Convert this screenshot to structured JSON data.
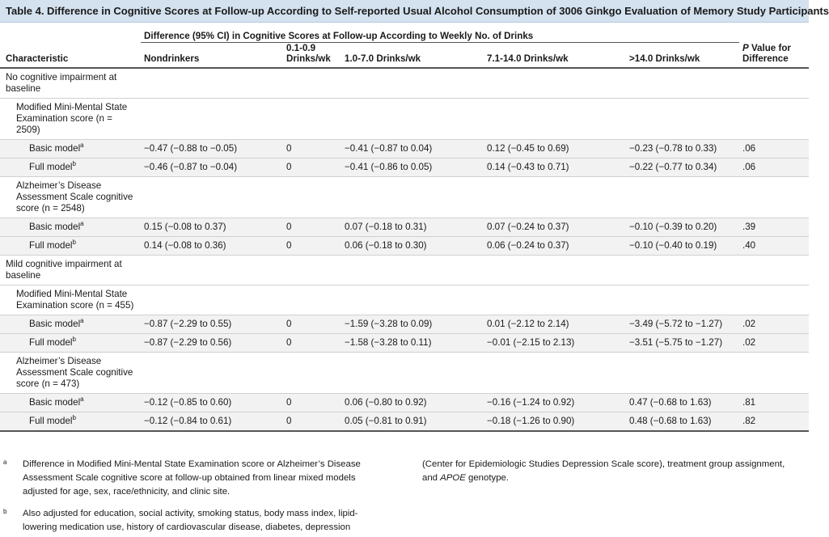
{
  "title": "Table 4. Difference in Cognitive Scores at Follow-up According to Self-reported Usual Alcohol Consumption of 3006 Ginkgo Evaluation of Memory Study Participants",
  "header": {
    "span_label": "Difference (95% CI) in Cognitive Scores at Follow-up According to Weekly No. of Drinks",
    "characteristic": "Characteristic",
    "columns": [
      "Nondrinkers",
      "0.1-0.9 Drinks/wk",
      "1.0-7.0 Drinks/wk",
      "7.1-14.0 Drinks/wk",
      ">14.0 Drinks/wk"
    ],
    "pvalue_italic": "P",
    "pvalue_rest": " Value for Difference"
  },
  "rows": [
    {
      "kind": "section",
      "level": 0,
      "label": "No cognitive impairment at baseline"
    },
    {
      "kind": "section",
      "level": 1,
      "label": "Modified Mini-Mental State Examination score (n = 2509)"
    },
    {
      "kind": "data",
      "level": 2,
      "label": "Basic model",
      "sup": "a",
      "values": [
        "−0.47 (−0.88 to −0.05)",
        "0",
        "−0.41 (−0.87 to 0.04)",
        "0.12 (−0.45 to 0.69)",
        "−0.23 (−0.78 to 0.33)",
        ".06"
      ]
    },
    {
      "kind": "data",
      "level": 2,
      "label": "Full model",
      "sup": "b",
      "values": [
        "−0.46 (−0.87 to −0.04)",
        "0",
        "−0.41 (−0.86 to 0.05)",
        "0.14 (−0.43 to 0.71)",
        "−0.22 (−0.77 to 0.34)",
        ".06"
      ]
    },
    {
      "kind": "section",
      "level": 1,
      "label": "Alzheimer’s Disease Assessment Scale cognitive score (n = 2548)"
    },
    {
      "kind": "data",
      "level": 2,
      "label": "Basic model",
      "sup": "a",
      "values": [
        "0.15 (−0.08 to 0.37)",
        "0",
        "0.07 (−0.18 to 0.31)",
        "0.07 (−0.24 to 0.37)",
        "−0.10 (−0.39 to 0.20)",
        ".39"
      ]
    },
    {
      "kind": "data",
      "level": 2,
      "label": "Full model",
      "sup": "b",
      "values": [
        "0.14 (−0.08 to 0.36)",
        "0",
        "0.06 (−0.18 to 0.30)",
        "0.06 (−0.24 to 0.37)",
        "−0.10 (−0.40 to 0.19)",
        ".40"
      ]
    },
    {
      "kind": "section",
      "level": 0,
      "label": "Mild cognitive impairment at baseline"
    },
    {
      "kind": "section",
      "level": 1,
      "label": "Modified Mini-Mental State Examination score (n = 455)"
    },
    {
      "kind": "data",
      "level": 2,
      "label": "Basic model",
      "sup": "a",
      "values": [
        "−0.87 (−2.29 to 0.55)",
        "0",
        "−1.59 (−3.28 to 0.09)",
        "0.01 (−2.12 to 2.14)",
        "−3.49 (−5.72 to −1.27)",
        ".02"
      ]
    },
    {
      "kind": "data",
      "level": 2,
      "label": "Full model",
      "sup": "b",
      "values": [
        "−0.87 (−2.29 to 0.56)",
        "0",
        "−1.58 (−3.28 to 0.11)",
        "−0.01 (−2.15 to 2.13)",
        "−3.51 (−5.75 to −1.27)",
        ".02"
      ]
    },
    {
      "kind": "section",
      "level": 1,
      "label": "Alzheimer’s Disease Assessment Scale cognitive score (n = 473)"
    },
    {
      "kind": "data",
      "level": 2,
      "label": "Basic model",
      "sup": "a",
      "values": [
        "−0.12 (−0.85 to 0.60)",
        "0",
        "0.06 (−0.80 to 0.92)",
        "−0.16 (−1.24 to 0.92)",
        "0.47 (−0.68 to 1.63)",
        ".81"
      ]
    },
    {
      "kind": "data",
      "level": 2,
      "label": "Full model",
      "sup": "b",
      "values": [
        "−0.12 (−0.84 to 0.61)",
        "0",
        "0.05 (−0.81 to 0.91)",
        "−0.18 (−1.26 to 0.90)",
        "0.48 (−0.68 to 1.63)",
        ".82"
      ]
    }
  ],
  "footnotes": {
    "a_mark": "a",
    "a_text": "Difference in Modified Mini-Mental State Examination score or Alzheimer’s Disease Assessment Scale cognitive score at follow-up obtained from linear mixed models adjusted for age, sex, race/ethnicity, and clinic site.",
    "b_mark": "b",
    "b_text": "Also adjusted for education, social activity, smoking status, body mass index, lipid-lowering medication use, history of cardiovascular disease, diabetes, depression",
    "b_cont_before": "(Center for Epidemiologic Studies Depression Scale score), treatment group assignment, and ",
    "b_cont_italic": "APOE",
    "b_cont_after": " genotype."
  },
  "colors": {
    "title_bg": "#d4e2ef",
    "row_shade": "#f2f2f2"
  }
}
